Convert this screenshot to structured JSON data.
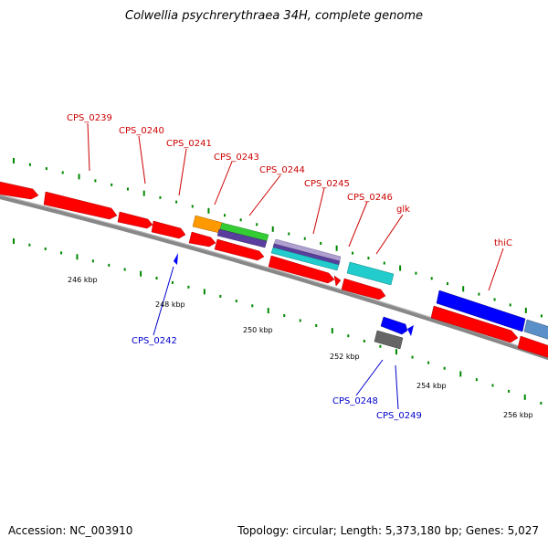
{
  "title": "Colwellia psychrerythraea 34H, complete genome",
  "footer": {
    "accession_label": "Accession:",
    "accession": "NC_003910",
    "topology_label": "Topology:",
    "topology": "circular",
    "length_label": "Length:",
    "length": "5,373,180 bp",
    "genes_label": "Genes:",
    "genes": "5,027"
  },
  "scale": {
    "unit": "kbp",
    "ticks": [
      "246 kbp",
      "248 kbp",
      "250 kbp",
      "252 kbp",
      "254 kbp",
      "256 kbp"
    ]
  },
  "gene_labels_forward": [
    "CPS_0239",
    "CPS_0240",
    "CPS_0241",
    "CPS_0243",
    "CPS_0244",
    "CPS_0245",
    "CPS_0246",
    "glk",
    "thiC"
  ],
  "gene_labels_reverse": [
    "CPS_0242",
    "CPS_0248",
    "CPS_0249"
  ],
  "colors": {
    "forward_label": "#cc0000",
    "reverse_label": "#0000cc",
    "gene_red": "#ff0000",
    "orange": "#ff9900",
    "green": "#33cc33",
    "purple": "#5a3e9e",
    "lilac": "#b0a0d0",
    "cyan": "#22cccc",
    "blue": "#0000ff",
    "steel_blue": "#5b8fc7",
    "gray": "#666666",
    "backbone": "#888888",
    "tick_green": "#008800"
  }
}
